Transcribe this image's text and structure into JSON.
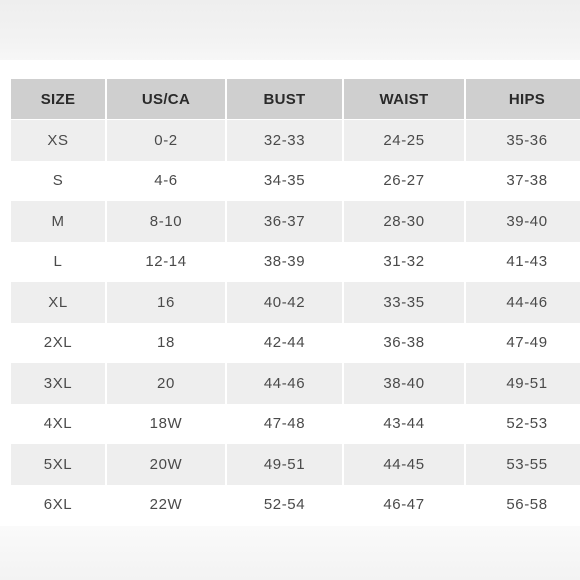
{
  "size_chart": {
    "headers": [
      "SIZE",
      "US/CA",
      "BUST",
      "WAIST",
      "HIPS"
    ],
    "rows": [
      [
        "XS",
        "0-2",
        "32-33",
        "24-25",
        "35-36"
      ],
      [
        "S",
        "4-6",
        "34-35",
        "26-27",
        "37-38"
      ],
      [
        "M",
        "8-10",
        "36-37",
        "28-30",
        "39-40"
      ],
      [
        "L",
        "12-14",
        "38-39",
        "31-32",
        "41-43"
      ],
      [
        "XL",
        "16",
        "40-42",
        "33-35",
        "44-46"
      ],
      [
        "2XL",
        "18",
        "42-44",
        "36-38",
        "47-49"
      ],
      [
        "3XL",
        "20",
        "44-46",
        "38-40",
        "49-51"
      ],
      [
        "4XL",
        "18W",
        "47-48",
        "43-44",
        "52-53"
      ],
      [
        "5XL",
        "20W",
        "49-51",
        "44-45",
        "53-55"
      ],
      [
        "6XL",
        "22W",
        "52-54",
        "46-47",
        "56-58"
      ]
    ],
    "colors": {
      "header_bg": "#cfcfcf",
      "shaded_row_bg": "#eeeeee",
      "plain_row_bg": "#ffffff",
      "header_text": "#2a2a2a",
      "cell_text": "#4a4a4a"
    }
  }
}
